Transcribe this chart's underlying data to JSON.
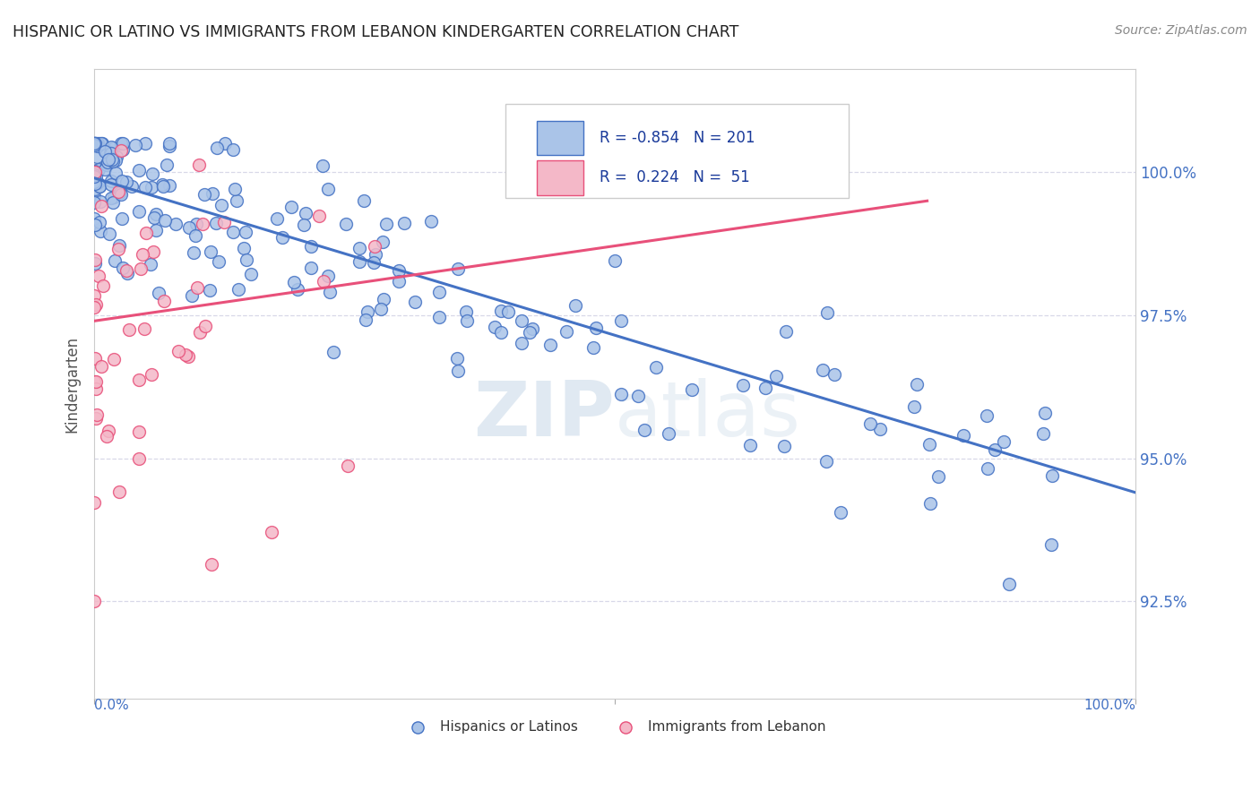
{
  "title": "HISPANIC OR LATINO VS IMMIGRANTS FROM LEBANON KINDERGARTEN CORRELATION CHART",
  "source_text": "Source: ZipAtlas.com",
  "ylabel": "Kindergarten",
  "ytick_labels": [
    "92.5%",
    "95.0%",
    "97.5%",
    "100.0%"
  ],
  "ytick_values": [
    0.925,
    0.95,
    0.975,
    1.0
  ],
  "xlim": [
    0.0,
    1.0
  ],
  "ylim": [
    0.908,
    1.018
  ],
  "blue_R": -0.854,
  "blue_N": 201,
  "pink_R": 0.224,
  "pink_N": 51,
  "blue_color": "#aac4e8",
  "blue_line_color": "#4472c4",
  "pink_color": "#f4b8c8",
  "pink_line_color": "#e8507a",
  "legend_text_color": "#1a3a9a",
  "watermark_color": "#c8d8e8",
  "background_color": "#ffffff",
  "grid_color": "#d8d8e8",
  "title_color": "#222222",
  "source_color": "#888888",
  "axis_label_color": "#4472c4",
  "ylabel_color": "#555555",
  "bottom_legend_color": "#333333"
}
